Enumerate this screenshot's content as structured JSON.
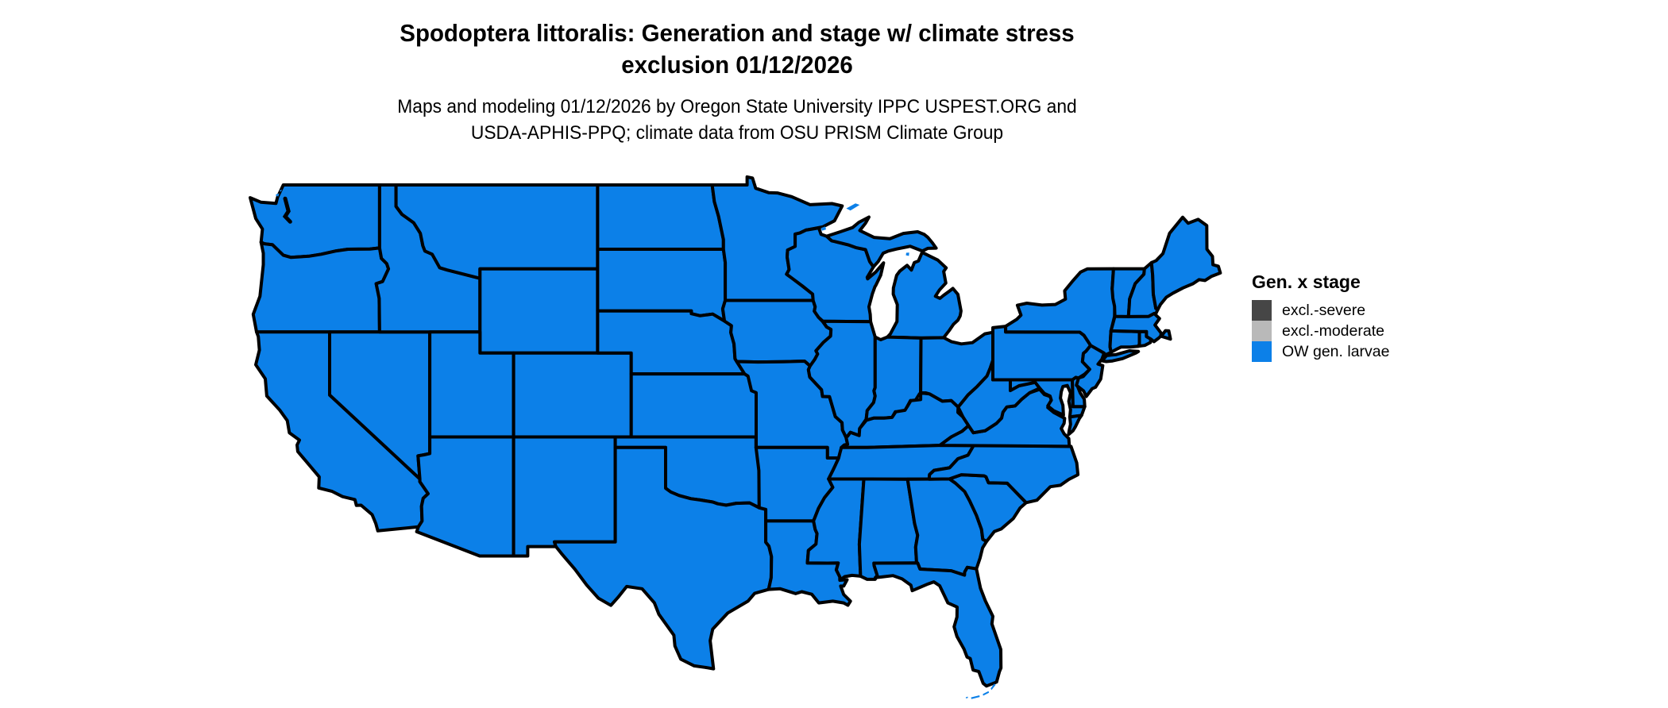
{
  "title": {
    "line1": "Spodoptera littoralis: Generation and stage w/ climate stress",
    "line2": "exclusion 01/12/2026"
  },
  "subtitle": {
    "line1": "Maps and modeling 01/12/2026 by Oregon State University IPPC USPEST.ORG and",
    "line2": "USDA-APHIS-PPQ; climate data from OSU PRISM Climate Group"
  },
  "legend": {
    "title": "Gen. x stage",
    "items": [
      {
        "label": "excl.-severe",
        "color": "#464646"
      },
      {
        "label": "excl.-moderate",
        "color": "#b9b9b9"
      },
      {
        "label": "OW gen. larvae",
        "color": "#0c80e8"
      }
    ]
  },
  "map": {
    "region": "Contiguous United States",
    "fill_status": "OW gen. larvae",
    "fill_color": "#0c80e8",
    "border_color": "#000000",
    "background_color": "#ffffff"
  }
}
